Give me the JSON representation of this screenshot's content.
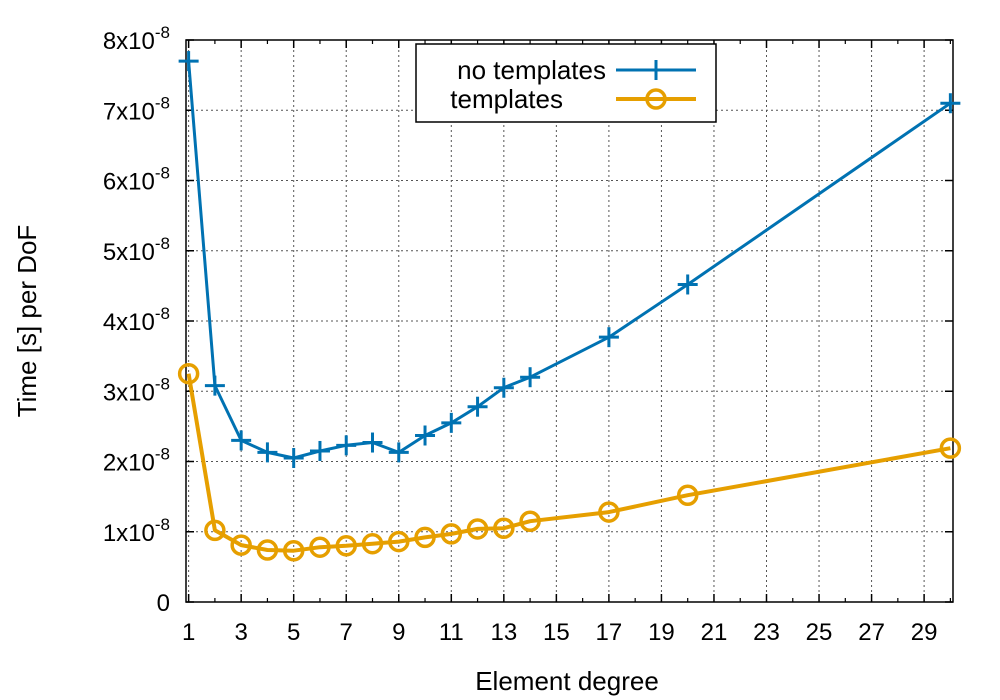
{
  "chart_data": {
    "type": "line",
    "xlabel": "Element degree",
    "ylabel": "Time [s] per DoF",
    "xlim": [
      0.9,
      30.1
    ],
    "ylim": [
      0,
      8e-08
    ],
    "x_ticks": [
      "1",
      "3",
      "5",
      "7",
      "9",
      "11",
      "13",
      "15",
      "17",
      "19",
      "21",
      "23",
      "25",
      "27",
      "29"
    ],
    "x_tick_values": [
      1,
      3,
      5,
      7,
      9,
      11,
      13,
      15,
      17,
      19,
      21,
      23,
      25,
      27,
      29
    ],
    "y_ticks": [
      {
        "value": 0,
        "mantissa": "0",
        "exponent": ""
      },
      {
        "value": 1e-08,
        "mantissa": "1x10",
        "exponent": "-8"
      },
      {
        "value": 2e-08,
        "mantissa": "2x10",
        "exponent": "-8"
      },
      {
        "value": 3e-08,
        "mantissa": "3x10",
        "exponent": "-8"
      },
      {
        "value": 4e-08,
        "mantissa": "4x10",
        "exponent": "-8"
      },
      {
        "value": 5e-08,
        "mantissa": "5x10",
        "exponent": "-8"
      },
      {
        "value": 6e-08,
        "mantissa": "6x10",
        "exponent": "-8"
      },
      {
        "value": 7e-08,
        "mantissa": "7x10",
        "exponent": "-8"
      },
      {
        "value": 8e-08,
        "mantissa": "8x10",
        "exponent": "-8"
      }
    ],
    "grid": true,
    "legend_position": "top-center",
    "series": [
      {
        "name": "no templates",
        "color": "#0072b2",
        "marker": "plus",
        "x": [
          1,
          2,
          3,
          4,
          5,
          6,
          7,
          8,
          9,
          10,
          11,
          12,
          13,
          14,
          17,
          20,
          30
        ],
        "y": [
          7.7e-08,
          3.08e-08,
          2.3e-08,
          2.13e-08,
          2.05e-08,
          2.15e-08,
          2.23e-08,
          2.27e-08,
          2.13e-08,
          2.37e-08,
          2.55e-08,
          2.78e-08,
          3.05e-08,
          3.2e-08,
          3.77e-08,
          4.52e-08,
          7.1e-08
        ]
      },
      {
        "name": "templates",
        "color": "#e69f00",
        "marker": "circle",
        "x": [
          1,
          2,
          3,
          4,
          5,
          6,
          7,
          8,
          9,
          10,
          11,
          12,
          13,
          14,
          17,
          20,
          30
        ],
        "y": [
          3.25e-08,
          1.02e-08,
          8.1e-09,
          7.4e-09,
          7.3e-09,
          7.8e-09,
          8e-09,
          8.3e-09,
          8.6e-09,
          9.2e-09,
          9.7e-09,
          1.04e-08,
          1.05e-08,
          1.15e-08,
          1.28e-08,
          1.52e-08,
          2.19e-08
        ]
      }
    ]
  }
}
